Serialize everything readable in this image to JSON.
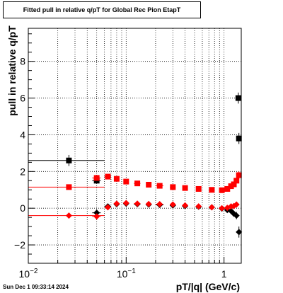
{
  "title": "Fitted pull in relative q/pT for Global Rec Pion EtapT",
  "timestamp": "Sun Dec  1 09:33:14 2024",
  "colors": {
    "black_series": "#000000",
    "red_series": "#ff0000",
    "grid": "#000000"
  },
  "chart_data": {
    "type": "scatter",
    "title": "Fitted pull in relative q/pT for Global Rec Pion EtapT",
    "xlabel": "pT/|q| (GeV/c)",
    "ylabel": "pull in relative q/pT",
    "x_scale": "log",
    "xlim": [
      0.01,
      1.5
    ],
    "ylim": [
      -3.0,
      9.8
    ],
    "grid": true,
    "x_ticks": [
      {
        "value": 0.01,
        "base": "10",
        "exp": "−2"
      },
      {
        "value": 0.1,
        "base": "10",
        "exp": "−1"
      },
      {
        "value": 1,
        "base": "1",
        "exp": ""
      }
    ],
    "y_ticks": [
      {
        "value": -2,
        "label": "−2"
      },
      {
        "value": 0,
        "label": "0"
      },
      {
        "value": 2,
        "label": "2"
      },
      {
        "value": 4,
        "label": "4"
      },
      {
        "value": 6,
        "label": "6"
      },
      {
        "value": 8,
        "label": "8"
      }
    ],
    "series": [
      {
        "marker": "square",
        "color": "#000000",
        "points": [
          {
            "x": 0.026,
            "y": 2.6,
            "xlo": 0.01,
            "xhi": 0.06,
            "err": 0.3
          },
          {
            "x": 0.05,
            "y": 1.5,
            "xlo": 0.045,
            "xhi": 0.055,
            "err": 0.15
          },
          {
            "x": 1.4,
            "y": 6.0,
            "xlo": 1.38,
            "xhi": 1.42,
            "err": 0.3
          },
          {
            "x": 1.42,
            "y": 3.8,
            "xlo": 1.4,
            "xhi": 1.44,
            "err": 0.3
          }
        ]
      },
      {
        "marker": "square",
        "color": "#ff0000",
        "points": [
          {
            "x": 0.026,
            "y": 1.15,
            "xlo": 0.01,
            "xhi": 0.06,
            "err": 0.08
          },
          {
            "x": 0.05,
            "y": 1.65,
            "xlo": 0.045,
            "xhi": 0.055,
            "err": 0.1
          },
          {
            "x": 0.065,
            "y": 1.72,
            "xlo": 0.06,
            "xhi": 0.07,
            "err": 0.08
          },
          {
            "x": 0.08,
            "y": 1.6,
            "xlo": 0.075,
            "xhi": 0.085,
            "err": 0.06
          },
          {
            "x": 0.1,
            "y": 1.45,
            "xlo": 0.095,
            "xhi": 0.105,
            "err": 0.05
          },
          {
            "x": 0.13,
            "y": 1.35,
            "xlo": 0.12,
            "xhi": 0.14,
            "err": 0.05
          },
          {
            "x": 0.17,
            "y": 1.28,
            "xlo": 0.16,
            "xhi": 0.18,
            "err": 0.05
          },
          {
            "x": 0.22,
            "y": 1.22,
            "xlo": 0.2,
            "xhi": 0.24,
            "err": 0.05
          },
          {
            "x": 0.3,
            "y": 1.15,
            "xlo": 0.28,
            "xhi": 0.32,
            "err": 0.05
          },
          {
            "x": 0.4,
            "y": 1.1,
            "xlo": 0.38,
            "xhi": 0.42,
            "err": 0.05
          },
          {
            "x": 0.55,
            "y": 1.05,
            "xlo": 0.52,
            "xhi": 0.58,
            "err": 0.05
          },
          {
            "x": 0.75,
            "y": 1.0,
            "xlo": 0.7,
            "xhi": 0.8,
            "err": 0.05
          },
          {
            "x": 0.95,
            "y": 0.98,
            "xlo": 0.9,
            "xhi": 1.0,
            "err": 0.06
          },
          {
            "x": 1.08,
            "y": 1.05,
            "xlo": 1.05,
            "xhi": 1.11,
            "err": 0.08
          },
          {
            "x": 1.18,
            "y": 1.2,
            "xlo": 1.15,
            "xhi": 1.21,
            "err": 0.1
          },
          {
            "x": 1.26,
            "y": 1.3,
            "xlo": 1.23,
            "xhi": 1.29,
            "err": 0.12
          },
          {
            "x": 1.34,
            "y": 1.5,
            "xlo": 1.31,
            "xhi": 1.37,
            "err": 0.15
          },
          {
            "x": 1.42,
            "y": 1.8,
            "xlo": 1.39,
            "xhi": 1.45,
            "err": 0.2
          }
        ]
      },
      {
        "marker": "diamond",
        "color": "#000000",
        "points": [
          {
            "x": 0.05,
            "y": -0.25,
            "xlo": 0.045,
            "xhi": 0.055,
            "err": 0.1
          },
          {
            "x": 0.065,
            "y": 0.1,
            "xlo": 0.06,
            "xhi": 0.07,
            "err": 0.08
          },
          {
            "x": 0.08,
            "y": 0.22,
            "xlo": 0.075,
            "xhi": 0.085,
            "err": 0.06
          },
          {
            "x": 0.1,
            "y": 0.25,
            "xlo": 0.095,
            "xhi": 0.105,
            "err": 0.05
          },
          {
            "x": 0.13,
            "y": 0.22,
            "xlo": 0.12,
            "xhi": 0.14,
            "err": 0.05
          },
          {
            "x": 0.17,
            "y": 0.2,
            "xlo": 0.16,
            "xhi": 0.18,
            "err": 0.05
          },
          {
            "x": 0.22,
            "y": 0.18,
            "xlo": 0.2,
            "xhi": 0.24,
            "err": 0.05
          },
          {
            "x": 0.3,
            "y": 0.15,
            "xlo": 0.28,
            "xhi": 0.32,
            "err": 0.05
          },
          {
            "x": 0.4,
            "y": 0.12,
            "xlo": 0.38,
            "xhi": 0.42,
            "err": 0.05
          },
          {
            "x": 0.55,
            "y": 0.08,
            "xlo": 0.52,
            "xhi": 0.58,
            "err": 0.05
          },
          {
            "x": 0.75,
            "y": 0.05,
            "xlo": 0.7,
            "xhi": 0.8,
            "err": 0.05
          },
          {
            "x": 0.95,
            "y": -0.02,
            "xlo": 0.9,
            "xhi": 1.0,
            "err": 0.06
          },
          {
            "x": 1.08,
            "y": -0.1,
            "xlo": 1.05,
            "xhi": 1.11,
            "err": 0.08
          },
          {
            "x": 1.18,
            "y": -0.15,
            "xlo": 1.15,
            "xhi": 1.21,
            "err": 0.1
          },
          {
            "x": 1.26,
            "y": -0.3,
            "xlo": 1.23,
            "xhi": 1.29,
            "err": 0.15
          },
          {
            "x": 1.34,
            "y": -0.4,
            "xlo": 1.31,
            "xhi": 1.37,
            "err": 0.2
          },
          {
            "x": 1.42,
            "y": -1.3,
            "xlo": 1.39,
            "xhi": 1.45,
            "err": 0.3
          }
        ]
      },
      {
        "marker": "diamond",
        "color": "#ff0000",
        "points": [
          {
            "x": 0.026,
            "y": -0.4,
            "xlo": 0.01,
            "xhi": 0.06,
            "err": 0.15
          },
          {
            "x": 0.05,
            "y": -0.45,
            "xlo": 0.045,
            "xhi": 0.055,
            "err": 0.1
          },
          {
            "x": 0.065,
            "y": 0.05,
            "xlo": 0.06,
            "xhi": 0.07,
            "err": 0.08
          },
          {
            "x": 0.08,
            "y": 0.25,
            "xlo": 0.075,
            "xhi": 0.085,
            "err": 0.06
          },
          {
            "x": 0.1,
            "y": 0.28,
            "xlo": 0.095,
            "xhi": 0.105,
            "err": 0.05
          },
          {
            "x": 0.13,
            "y": 0.25,
            "xlo": 0.12,
            "xhi": 0.14,
            "err": 0.05
          },
          {
            "x": 0.17,
            "y": 0.23,
            "xlo": 0.16,
            "xhi": 0.18,
            "err": 0.05
          },
          {
            "x": 0.22,
            "y": 0.22,
            "xlo": 0.2,
            "xhi": 0.24,
            "err": 0.05
          },
          {
            "x": 0.3,
            "y": 0.2,
            "xlo": 0.28,
            "xhi": 0.32,
            "err": 0.05
          },
          {
            "x": 0.4,
            "y": 0.15,
            "xlo": 0.38,
            "xhi": 0.42,
            "err": 0.05
          },
          {
            "x": 0.55,
            "y": 0.1,
            "xlo": 0.52,
            "xhi": 0.58,
            "err": 0.05
          },
          {
            "x": 0.75,
            "y": 0.05,
            "xlo": 0.7,
            "xhi": 0.8,
            "err": 0.05
          },
          {
            "x": 0.95,
            "y": 0.0,
            "xlo": 0.9,
            "xhi": 1.0,
            "err": 0.06
          },
          {
            "x": 1.08,
            "y": 0.02,
            "xlo": 1.05,
            "xhi": 1.11,
            "err": 0.08
          },
          {
            "x": 1.18,
            "y": 0.1,
            "xlo": 1.15,
            "xhi": 1.21,
            "err": 0.1
          },
          {
            "x": 1.26,
            "y": 0.12,
            "xlo": 1.23,
            "xhi": 1.29,
            "err": 0.12
          },
          {
            "x": 1.34,
            "y": 0.2,
            "xlo": 1.31,
            "xhi": 1.37,
            "err": 0.15
          }
        ]
      }
    ]
  }
}
